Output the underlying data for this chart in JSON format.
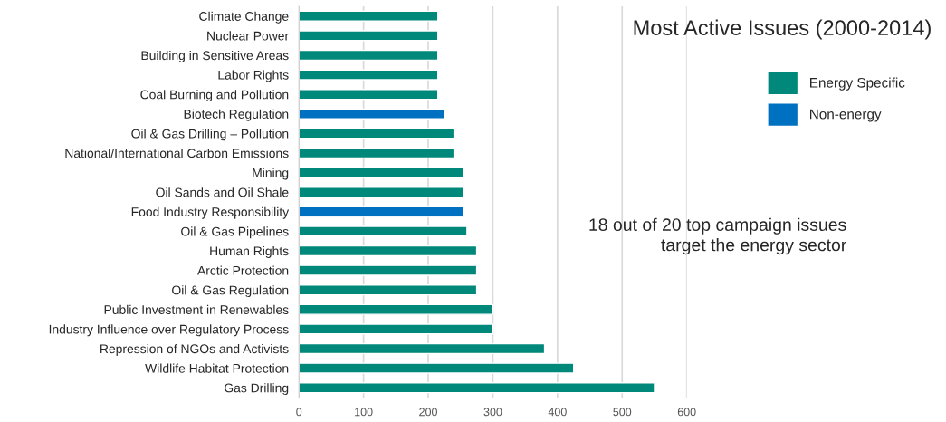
{
  "chart_data": {
    "type": "bar",
    "orientation": "horizontal",
    "title": "Most Active Issues (2000-2014)",
    "categories": [
      "Climate Change",
      "Nuclear Power",
      "Building in Sensitive Areas",
      "Labor Rights",
      "Coal Burning and Pollution",
      "Biotech Regulation",
      "Oil & Gas Drilling – Pollution",
      "National/International Carbon Emissions",
      "Mining",
      "Oil Sands and Oil Shale",
      "Food Industry Responsibility",
      "Oil & Gas Pipelines",
      "Human Rights",
      "Arctic Protection",
      "Oil & Gas Regulation",
      "Public Investment in Renewables",
      "Industry Influence over Regulatory Process",
      "Repression of NGOs and Activists",
      "Wildlife Habitat Protection",
      "Gas Drilling"
    ],
    "series": [
      {
        "name": "Energy Specific",
        "color": "#00897b",
        "values": [
          215,
          215,
          215,
          215,
          215,
          null,
          240,
          240,
          255,
          255,
          null,
          260,
          275,
          275,
          275,
          300,
          300,
          380,
          425,
          550
        ]
      },
      {
        "name": "Non-energy",
        "color": "#0070c0",
        "values": [
          null,
          null,
          null,
          null,
          null,
          225,
          null,
          null,
          null,
          null,
          255,
          null,
          null,
          null,
          null,
          null,
          null,
          null,
          null,
          null
        ]
      }
    ],
    "xlim": [
      0,
      600
    ],
    "xticks": [
      0,
      100,
      200,
      300,
      400,
      500,
      600
    ],
    "grid": "x",
    "legend": "right",
    "annotations": [
      "18 out of 20 top campaign issues\ntarget the energy sector"
    ]
  }
}
